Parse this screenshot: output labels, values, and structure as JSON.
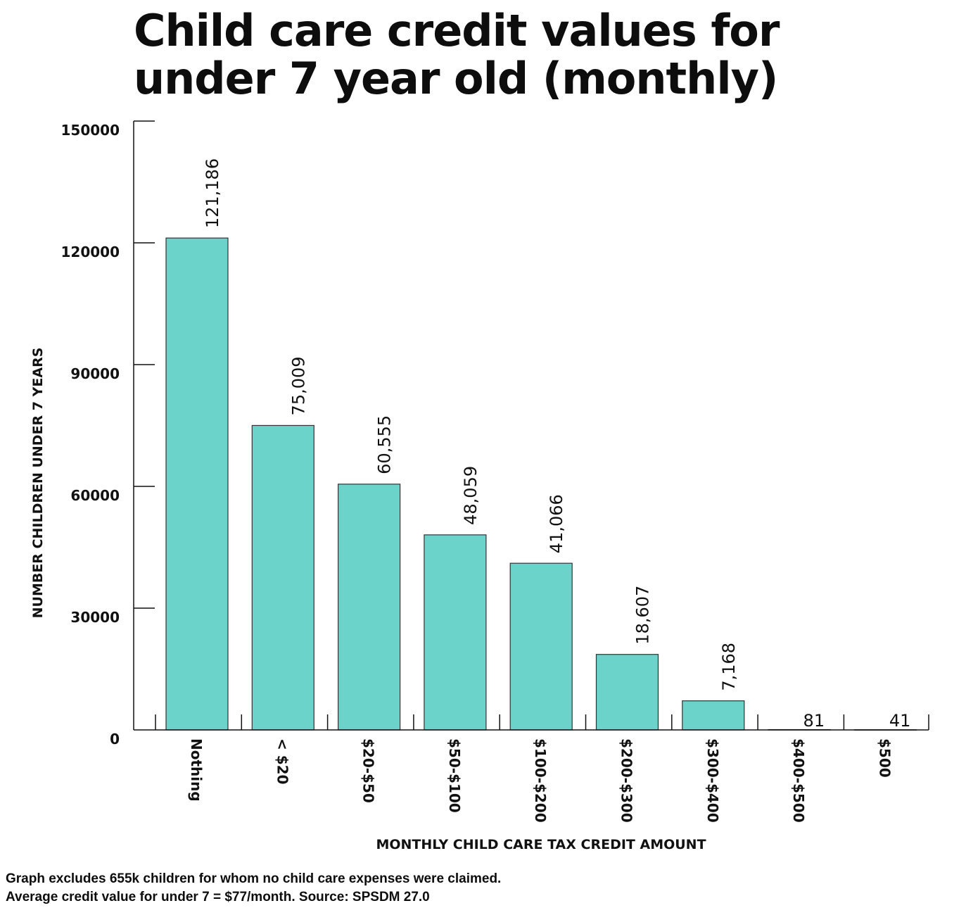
{
  "chart_data": {
    "type": "bar",
    "title_lines": [
      "Child care credit values for",
      "under 7 year old (monthly)"
    ],
    "xlabel": "MONTHLY CHILD CARE TAX CREDIT AMOUNT",
    "ylabel": "NUMBER CHILDREN UNDER 7 YEARS",
    "categories": [
      "Nothing",
      "< $20",
      "$20-$50",
      "$50-$100",
      "$100-$200",
      "$200-$300",
      "$300-$400",
      "$400-$500",
      "$500"
    ],
    "values": [
      121186,
      75009,
      60555,
      48059,
      41066,
      18607,
      7168,
      81,
      41
    ],
    "value_labels": [
      "121,186",
      "75,009",
      "60,555",
      "48,059",
      "41,066",
      "18,607",
      "7,168",
      "81",
      "41"
    ],
    "ylim": [
      0,
      150000
    ],
    "yticks": [
      0,
      30000,
      60000,
      90000,
      120000,
      150000
    ],
    "ytick_labels": [
      "0",
      "30000",
      "60000",
      "90000",
      "120000",
      "150000"
    ],
    "bar_color": "#6bd3c9",
    "grid": false,
    "legend": "none"
  },
  "footnote": {
    "line1": "Graph excludes 655k children for whom no child care expenses were claimed.",
    "line2": "Average credit value for under 7 = $77/month.  Source: SPSDM 27.0"
  }
}
